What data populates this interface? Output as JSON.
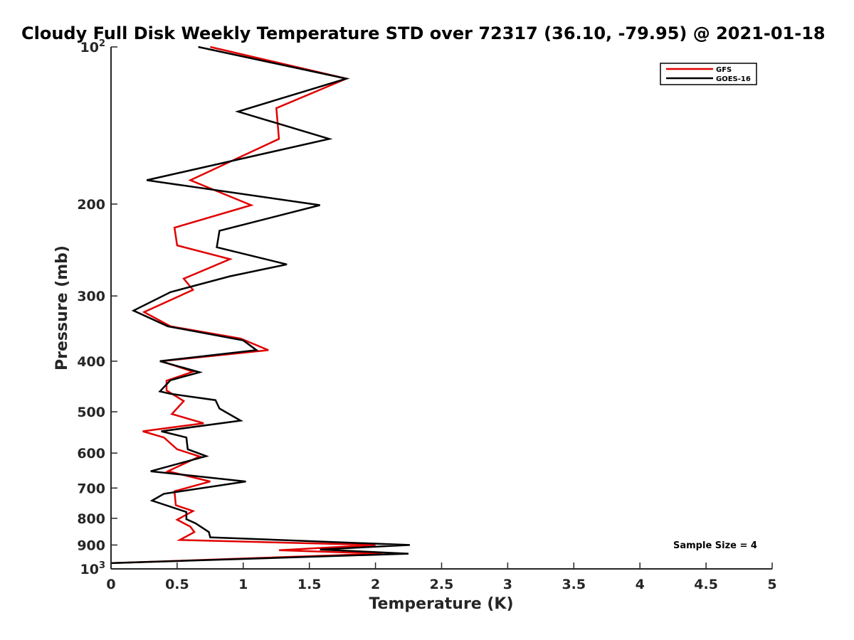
{
  "chart_data": {
    "type": "line",
    "title": "Cloudy Full Disk Weekly Temperature STD over 72317 (36.10, -79.95) @ 2021-01-18",
    "xlabel": "Temperature (K)",
    "ylabel": "Pressure (mb)",
    "xlim": [
      0,
      5
    ],
    "ylim": [
      100,
      1000
    ],
    "y_scale": "log",
    "y_reversed": true,
    "x_ticks": [
      "0",
      "0.5",
      "1",
      "1.5",
      "2",
      "2.5",
      "3",
      "3.5",
      "4",
      "4.5",
      "5"
    ],
    "y_ticks": [
      {
        "value": 100,
        "base": "10",
        "exp": "2"
      },
      {
        "value": 200,
        "label": "200"
      },
      {
        "value": 300,
        "label": "300"
      },
      {
        "value": 400,
        "label": "400"
      },
      {
        "value": 500,
        "label": "500"
      },
      {
        "value": 600,
        "label": "600"
      },
      {
        "value": 700,
        "label": "700"
      },
      {
        "value": 800,
        "label": "800"
      },
      {
        "value": 900,
        "label": "900"
      },
      {
        "value": 1000,
        "base": "10",
        "exp": "3"
      }
    ],
    "legend_position": "top-right",
    "grid": false,
    "annotation": "Sample Size = 4",
    "series": [
      {
        "name": "GFS",
        "color": "#e00000",
        "points": [
          [
            0.75,
            100
          ],
          [
            1.78,
            115
          ],
          [
            1.25,
            131
          ],
          [
            1.27,
            150
          ],
          [
            0.6,
            180
          ],
          [
            1.06,
            201
          ],
          [
            0.48,
            222
          ],
          [
            0.5,
            240
          ],
          [
            0.9,
            255
          ],
          [
            0.55,
            278
          ],
          [
            0.62,
            292
          ],
          [
            0.25,
            322
          ],
          [
            0.45,
            343
          ],
          [
            0.98,
            362
          ],
          [
            1.19,
            381
          ],
          [
            0.38,
            400
          ],
          [
            0.62,
            419
          ],
          [
            0.42,
            436
          ],
          [
            0.42,
            455
          ],
          [
            0.55,
            477
          ],
          [
            0.46,
            505
          ],
          [
            0.7,
            526
          ],
          [
            0.24,
            545
          ],
          [
            0.4,
            560
          ],
          [
            0.5,
            590
          ],
          [
            0.67,
            609
          ],
          [
            0.43,
            650
          ],
          [
            0.75,
            680
          ],
          [
            0.48,
            710
          ],
          [
            0.49,
            755
          ],
          [
            0.62,
            775
          ],
          [
            0.5,
            805
          ],
          [
            0.6,
            830
          ],
          [
            0.63,
            850
          ],
          [
            0.52,
            880
          ],
          [
            2.0,
            900
          ],
          [
            1.27,
            921
          ],
          [
            2.05,
            935
          ],
          [
            0.0,
            975
          ]
        ]
      },
      {
        "name": "GOES-16",
        "color": "#000000",
        "points": [
          [
            0.66,
            100
          ],
          [
            1.78,
            115
          ],
          [
            0.96,
            133
          ],
          [
            1.65,
            150
          ],
          [
            0.27,
            180
          ],
          [
            1.58,
            201
          ],
          [
            0.82,
            225
          ],
          [
            0.8,
            242
          ],
          [
            1.33,
            261
          ],
          [
            0.9,
            275
          ],
          [
            0.45,
            295
          ],
          [
            0.17,
            320
          ],
          [
            0.43,
            343
          ],
          [
            1.0,
            365
          ],
          [
            1.1,
            381
          ],
          [
            0.37,
            400
          ],
          [
            0.67,
            420
          ],
          [
            0.45,
            435
          ],
          [
            0.37,
            457
          ],
          [
            0.45,
            462
          ],
          [
            0.79,
            475
          ],
          [
            0.82,
            493
          ],
          [
            0.98,
            520
          ],
          [
            0.38,
            545
          ],
          [
            0.57,
            560
          ],
          [
            0.58,
            590
          ],
          [
            0.72,
            608
          ],
          [
            0.3,
            650
          ],
          [
            1.02,
            680
          ],
          [
            0.4,
            718
          ],
          [
            0.31,
            740
          ],
          [
            0.57,
            778
          ],
          [
            0.57,
            803
          ],
          [
            0.64,
            818
          ],
          [
            0.74,
            850
          ],
          [
            0.75,
            870
          ],
          [
            2.26,
            900
          ],
          [
            1.58,
            918
          ],
          [
            2.25,
            935
          ],
          [
            0.0,
            975
          ]
        ]
      }
    ]
  }
}
